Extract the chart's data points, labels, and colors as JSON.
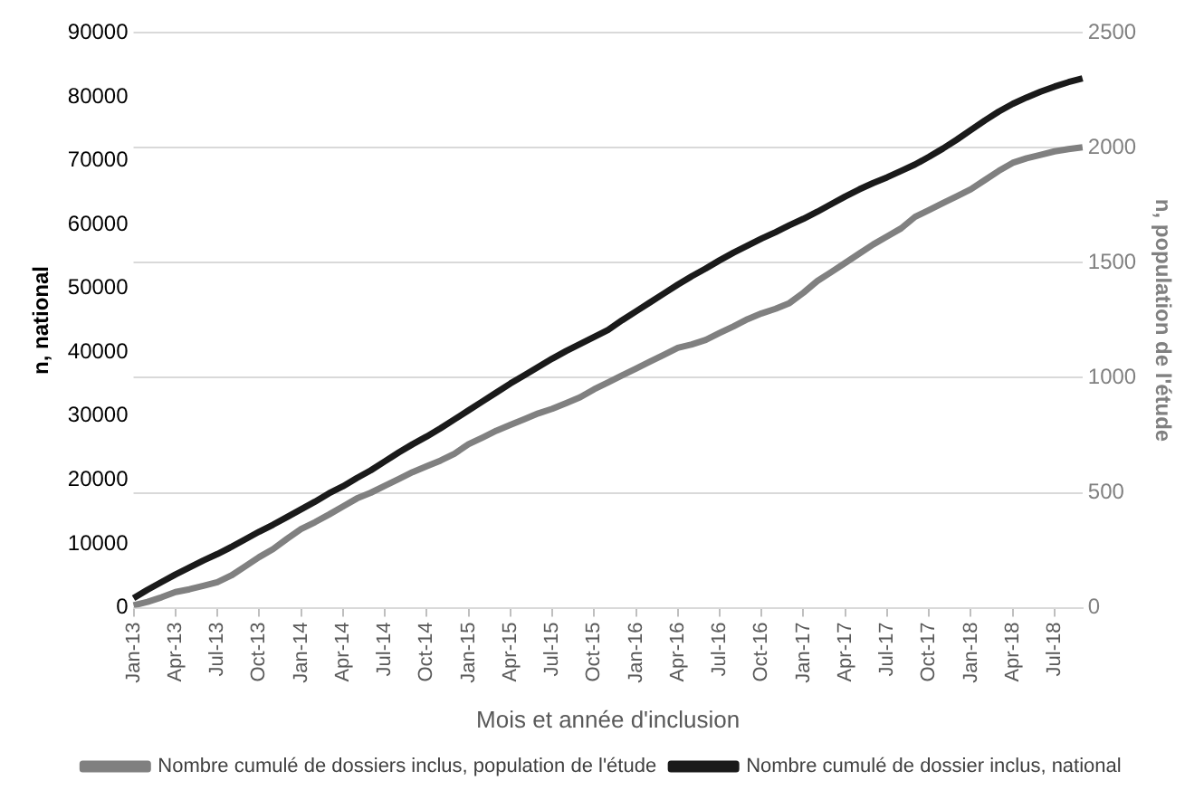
{
  "chart_data": {
    "type": "line",
    "xlabel": "Mois et année d'inclusion",
    "ylabel": "n, national",
    "y2label": "n, population de l'étude",
    "categories": [
      "Jan-13",
      null,
      null,
      "Apr-13",
      null,
      null,
      "Jul-13",
      null,
      null,
      "Oct-13",
      null,
      null,
      "Jan-14",
      null,
      null,
      "Apr-14",
      null,
      null,
      "Jul-14",
      null,
      null,
      "Oct-14",
      null,
      null,
      "Jan-15",
      null,
      null,
      "Apr-15",
      null,
      null,
      "Jul-15",
      null,
      null,
      "Oct-15",
      null,
      null,
      "Jan-16",
      null,
      null,
      "Apr-16",
      null,
      null,
      "Jul-16",
      null,
      null,
      "Oct-16",
      null,
      null,
      "Jan-17",
      null,
      null,
      "Apr-17",
      null,
      null,
      "Jul-17",
      null,
      null,
      "Oct-17",
      null,
      null,
      "Jan-18",
      null,
      null,
      "Apr-18",
      null,
      null,
      "Jul-18",
      null,
      null
    ],
    "series": [
      {
        "name": "Nombre cumulé de dossiers inclus, population de l'étude",
        "color": "#808080",
        "axis": "y2",
        "values": [
          10,
          25,
          45,
          68,
          80,
          95,
          111,
          140,
          180,
          220,
          255,
          300,
          342,
          372,
          405,
          440,
          475,
          500,
          530,
          560,
          590,
          615,
          640,
          670,
          711,
          740,
          770,
          795,
          820,
          845,
          865,
          890,
          915,
          950,
          980,
          1010,
          1040,
          1070,
          1100,
          1130,
          1145,
          1165,
          1195,
          1224,
          1255,
          1280,
          1300,
          1325,
          1370,
          1421,
          1460,
          1500,
          1540,
          1580,
          1615,
          1650,
          1700,
          1730,
          1760,
          1790,
          1820,
          1860,
          1900,
          1935,
          1955,
          1970,
          1985,
          1995,
          2003
        ]
      },
      {
        "name": "Nombre cumulé de dossier inclus, national",
        "color": "#1a1a1a",
        "values": [
          1500,
          2800,
          4000,
          5200,
          6300,
          7400,
          8400,
          9500,
          10700,
          11900,
          13000,
          14200,
          15400,
          16600,
          17900,
          19000,
          20300,
          21500,
          22900,
          24300,
          25600,
          26800,
          28100,
          29500,
          30900,
          32300,
          33700,
          35100,
          36400,
          37700,
          39000,
          40200,
          41300,
          42400,
          43500,
          45000,
          46400,
          47800,
          49200,
          50600,
          51900,
          53100,
          54400,
          55600,
          56700,
          57800,
          58800,
          59900,
          60900,
          62000,
          63200,
          64400,
          65500,
          66500,
          67400,
          68400,
          69400,
          70600,
          71900,
          73300,
          74800,
          76300,
          77700,
          78900,
          79900,
          80800,
          81600,
          82300,
          82900
        ]
      }
    ],
    "ylim": [
      0,
      90000
    ],
    "yticks": [
      0,
      10000,
      20000,
      30000,
      40000,
      50000,
      60000,
      70000,
      80000,
      90000
    ],
    "y2lim": [
      0,
      2500
    ],
    "y2ticks": [
      0,
      500,
      1000,
      1500,
      2000,
      2500
    ],
    "grid": "y",
    "legend": "bottom",
    "marker": "none",
    "line_style": "solid"
  }
}
